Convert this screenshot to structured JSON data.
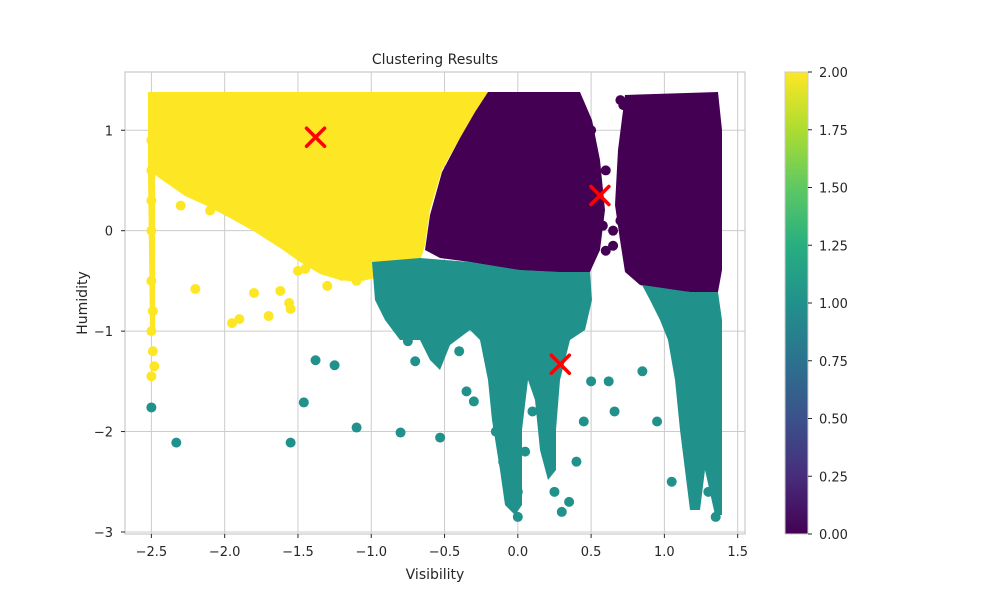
{
  "chart_data": {
    "type": "scatter",
    "title": "Clustering Results",
    "xlabel": "Visibility",
    "ylabel": "Humidity",
    "xlim": [
      -2.68,
      1.55
    ],
    "ylim": [
      -3.02,
      1.58
    ],
    "xticks": [
      -2.5,
      -2.0,
      -1.5,
      -1.0,
      -0.5,
      0.0,
      0.5,
      1.0,
      1.5
    ],
    "xtick_labels": [
      "−2.5",
      "−2.0",
      "−1.5",
      "−1.0",
      "−0.5",
      "0.0",
      "0.5",
      "1.0",
      "1.5"
    ],
    "yticks": [
      1,
      0,
      -1,
      -2,
      -3
    ],
    "ytick_labels": [
      "1",
      "0",
      "−1",
      "−2",
      "−3"
    ],
    "grid": true,
    "colormap": "viridis",
    "colorbar": {
      "min": 0.0,
      "max": 2.0,
      "ticks": [
        0.0,
        0.25,
        0.5,
        0.75,
        1.0,
        1.25,
        1.5,
        1.75,
        2.0
      ],
      "tick_labels": [
        "0.00",
        "0.25",
        "0.50",
        "0.75",
        "1.00",
        "1.25",
        "1.50",
        "1.75",
        "2.00"
      ]
    },
    "cluster_colors": [
      "#440154",
      "#21918c",
      "#fde725"
    ],
    "centroid_marker_color": "#ff0000",
    "centroids": [
      {
        "cluster": 2,
        "x": -1.38,
        "y": 0.93
      },
      {
        "cluster": 0,
        "x": 0.56,
        "y": 0.35
      },
      {
        "cluster": 1,
        "x": 0.29,
        "y": -1.33
      }
    ],
    "series": [
      {
        "cluster": 2,
        "x": [
          -2.5,
          -2.49,
          -2.48,
          -2.5,
          -2.49,
          -2.5,
          -2.5,
          -2.5,
          -2.5,
          -2.5,
          -2.2,
          -1.95,
          -1.9,
          -1.8,
          -1.7,
          -1.62,
          -1.56,
          -1.55,
          -1.5,
          -1.45,
          -1.4,
          -1.3,
          -1.25,
          -1.2,
          -1.1,
          -1.05,
          -0.9,
          -0.8,
          -0.7,
          -2.3,
          -2.1,
          -1.6,
          -1.3
        ],
        "y": [
          -1.0,
          -1.2,
          -1.35,
          -1.45,
          -0.8,
          -0.5,
          0.0,
          0.3,
          0.6,
          0.9,
          -0.58,
          -0.92,
          -0.88,
          -0.62,
          -0.85,
          -0.6,
          -0.72,
          -0.78,
          -0.4,
          -0.38,
          -0.3,
          -0.55,
          -0.25,
          -0.45,
          -0.5,
          -0.3,
          -0.2,
          -0.05,
          0.1,
          0.25,
          0.2,
          0.0,
          0.4
        ]
      },
      {
        "cluster": 0,
        "x": [
          0.5,
          0.6,
          0.55,
          0.7,
          0.65,
          0.75,
          0.8,
          0.85,
          0.9,
          1.0,
          1.1,
          0.45,
          0.4,
          0.6,
          0.65,
          0.7,
          0.72,
          0.5,
          0.58
        ],
        "y": [
          0.8,
          0.6,
          0.2,
          0.1,
          0.0,
          -0.1,
          -0.3,
          -0.4,
          -0.5,
          -0.35,
          -0.4,
          0.35,
          -0.1,
          -0.2,
          -0.15,
          1.3,
          1.25,
          1.0,
          0.05
        ]
      },
      {
        "cluster": 1,
        "x": [
          -2.5,
          -2.33,
          -1.55,
          -1.46,
          -1.38,
          -1.25,
          -1.1,
          -0.8,
          -0.53,
          -0.35,
          -0.3,
          -0.7,
          -0.75,
          -0.4,
          -0.1,
          -0.15,
          0.0,
          0.0,
          0.2,
          0.25,
          0.3,
          0.35,
          0.4,
          0.45,
          0.5,
          0.62,
          0.66,
          0.85,
          0.95,
          1.05,
          1.2,
          1.25,
          1.3,
          1.35,
          0.1,
          0.2,
          -0.05,
          0.05
        ],
        "y": [
          -1.76,
          -2.11,
          -2.11,
          -1.71,
          -1.29,
          -1.34,
          -1.96,
          -2.01,
          -2.06,
          -1.6,
          -1.7,
          -1.3,
          -1.1,
          -1.2,
          -2.3,
          -2.0,
          -2.6,
          -2.85,
          -2.1,
          -2.6,
          -2.8,
          -2.7,
          -2.3,
          -1.9,
          -1.5,
          -1.5,
          -1.8,
          -1.4,
          -1.9,
          -2.5,
          -2.3,
          -2.0,
          -2.6,
          -2.85,
          -1.8,
          -1.2,
          -1.4,
          -2.2
        ]
      }
    ]
  }
}
